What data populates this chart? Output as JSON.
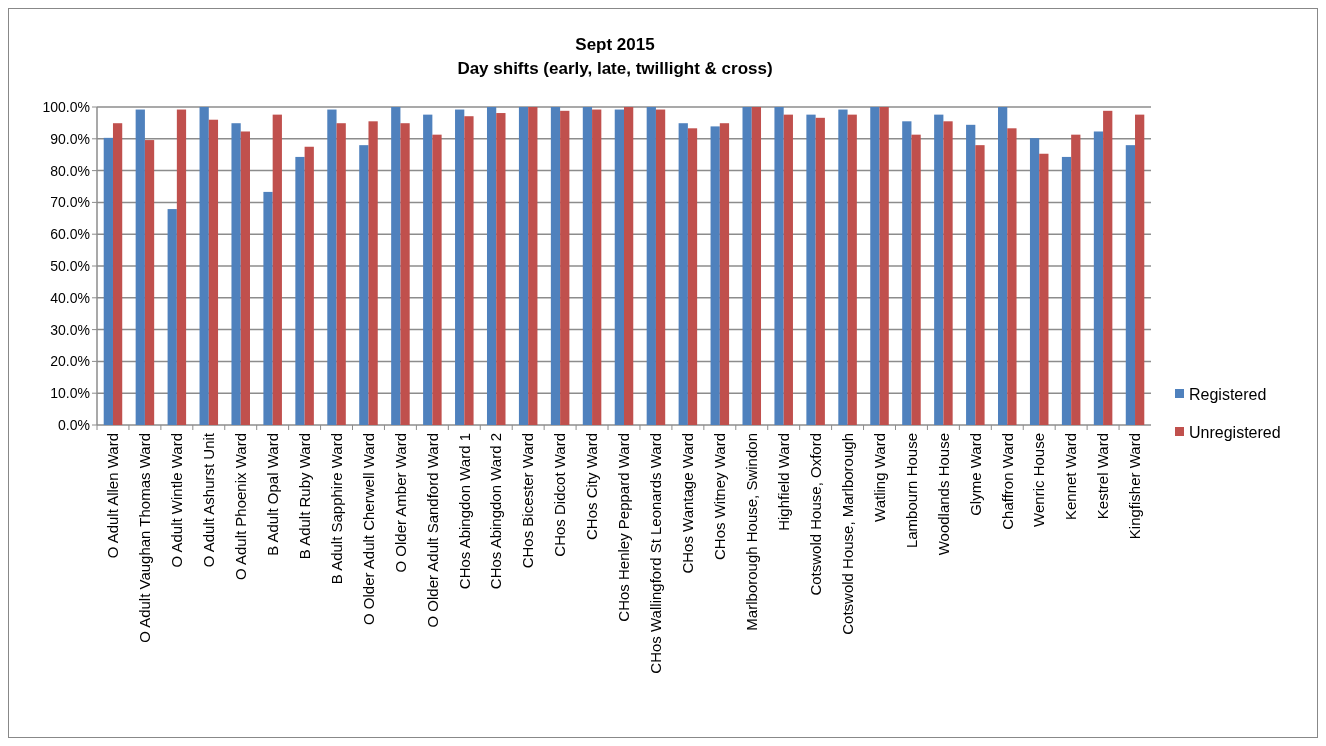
{
  "chart_data": {
    "type": "bar",
    "title": "Sept 2015",
    "subtitle": "Day shifts (early, late, twillight  & cross)",
    "categories": [
      "O Adult Allen Ward",
      "O Adult Vaughan Thomas Ward",
      "O Adult Wintle Ward",
      "O Adult Ashurst Unit",
      "O Adult Phoenix Ward",
      "B Adult Opal Ward",
      "B Adult Ruby Ward",
      "B Adult Sapphire Ward",
      "O Older Adult Cherwell Ward",
      "O Older Amber Ward",
      "O Older Adult Sandford Ward",
      "CHos Abingdon Ward 1",
      "CHos Abingdon Ward 2",
      "CHos Bicester Ward",
      "CHos Didcot Ward",
      "CHos City Ward",
      "CHos Henley Peppard Ward",
      "CHos Wallingford St Leonards Ward",
      "CHos Wantage Ward",
      "CHos Witney Ward",
      "Marlborough House, Swindon",
      "Highfield Ward",
      "Cotswold House, Oxford",
      "Cotswold House, Marlborough",
      "Watling Ward",
      "Lambourn House",
      "Woodlands House",
      "Glyme Ward",
      "Chaffron Ward",
      "Wenric House",
      "Kennet Ward",
      "Kestrel Ward",
      "Kingfisher Ward"
    ],
    "series": [
      {
        "name": "Registered",
        "color": "#4f81bd",
        "values": [
          90.3,
          99.2,
          67.9,
          100,
          94.9,
          73.3,
          84.3,
          99.2,
          88.0,
          100,
          97.6,
          99.2,
          100,
          100,
          100,
          100,
          99.2,
          100,
          94.9,
          93.9,
          100,
          100,
          97.6,
          99.2,
          100,
          95.5,
          97.6,
          94.4,
          100,
          90.2,
          84.3,
          92.3,
          88.0
        ]
      },
      {
        "name": "Unregistered",
        "color": "#c0504d",
        "values": [
          94.9,
          89.6,
          99.2,
          96.0,
          92.3,
          97.6,
          87.5,
          94.9,
          95.5,
          94.9,
          91.3,
          97.1,
          98.1,
          100,
          98.8,
          99.2,
          100,
          99.2,
          93.3,
          94.9,
          100,
          97.6,
          96.6,
          97.6,
          100,
          91.3,
          95.5,
          88.0,
          93.3,
          85.3,
          91.3,
          98.8,
          97.6
        ]
      }
    ],
    "ylim": [
      0,
      100
    ],
    "yticks": [
      {
        "value": 0,
        "label": "0.0%"
      },
      {
        "value": 10,
        "label": "10.0%"
      },
      {
        "value": 20,
        "label": "20.0%"
      },
      {
        "value": 30,
        "label": "30.0%"
      },
      {
        "value": 40,
        "label": "40.0%"
      },
      {
        "value": 50,
        "label": "50.0%"
      },
      {
        "value": 60,
        "label": "60.0%"
      },
      {
        "value": 70,
        "label": "70.0%"
      },
      {
        "value": 80,
        "label": "80.0%"
      },
      {
        "value": 90,
        "label": "90.0%"
      },
      {
        "value": 100,
        "label": "100.0%"
      }
    ],
    "grid": "y",
    "legend": "right"
  }
}
